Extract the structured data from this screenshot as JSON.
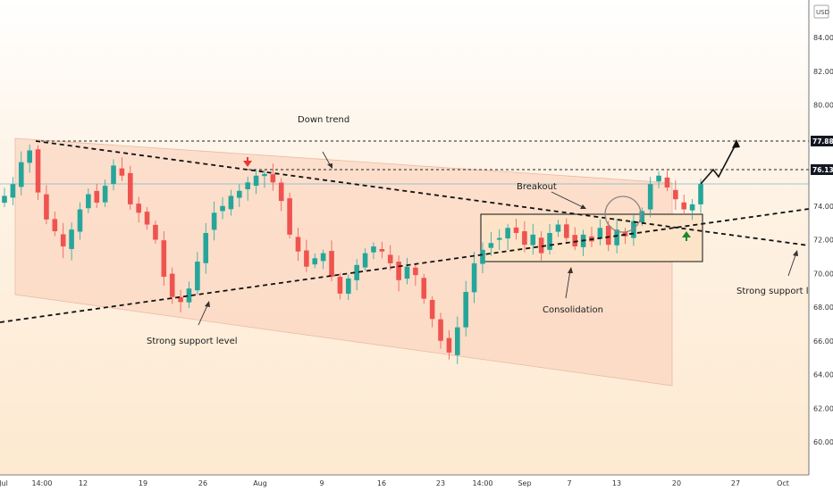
{
  "chart_data": {
    "type": "candlestick",
    "currency": "USD",
    "ylim": [
      58.8,
      86.7
    ],
    "y_ticks": [
      "84.00",
      "82.00",
      "80.00",
      "78.00",
      "76.00",
      "74.00",
      "72.00",
      "70.00",
      "68.00",
      "66.00",
      "64.00",
      "62.00",
      "60.00"
    ],
    "y_tick_values": [
      84,
      82,
      80,
      78,
      76,
      74,
      72,
      70,
      68,
      66,
      64,
      62,
      60
    ],
    "x_ticks": [
      "Jul",
      "14:00",
      "12",
      "19",
      "26",
      "Aug",
      "9",
      "16",
      "23",
      "14:00",
      "Sep",
      "7",
      "13",
      "20",
      "27",
      "Oct"
    ],
    "price_badges": [
      {
        "label": "77.88",
        "value": 77.88,
        "color": "#131722"
      },
      {
        "label": "76.13",
        "value": 76.13,
        "color": "#131722"
      }
    ],
    "current_price": 75.35,
    "candles_close": [
      74.6,
      75.3,
      76.6,
      77.3,
      74.8,
      73.2,
      72.5,
      71.6,
      72.6,
      73.8,
      74.7,
      74.2,
      75.2,
      76.4,
      75.8,
      74.1,
      73.6,
      72.9,
      72.0,
      69.8,
      68.6,
      68.3,
      69.1,
      70.7,
      72.4,
      73.6,
      74.0,
      74.6,
      74.9,
      75.4,
      75.8,
      75.9,
      75.4,
      74.3,
      72.3,
      71.3,
      70.4,
      70.9,
      71.2,
      69.8,
      68.8,
      69.7,
      70.5,
      71.2,
      71.6,
      71.3,
      70.6,
      69.6,
      70.4,
      69.9,
      68.5,
      67.3,
      66.0,
      65.3,
      66.8,
      68.9,
      70.6,
      71.4,
      71.8,
      72.1,
      72.7,
      72.4,
      71.7,
      72.3,
      71.2,
      72.4,
      72.9,
      72.1,
      71.6,
      72.3,
      71.9,
      72.7,
      71.7,
      72.6,
      72.2,
      73.1,
      73.7,
      75.3,
      75.8,
      75.1,
      74.4,
      73.8,
      74.1,
      75.3
    ]
  },
  "annotations": {
    "down_trend": "Down trend",
    "breakout": "Breakout",
    "consolidation": "Consolidation",
    "support_left": "Strong support level",
    "support_right": "Strong support level"
  },
  "colors": {
    "up": "#26a69a",
    "down": "#ef5350",
    "channel_fill": "#fbd6bf",
    "consolidation_fill": "#fce0c4",
    "red_arrow": "#e53935",
    "green_arrow": "#1b8a2e"
  }
}
